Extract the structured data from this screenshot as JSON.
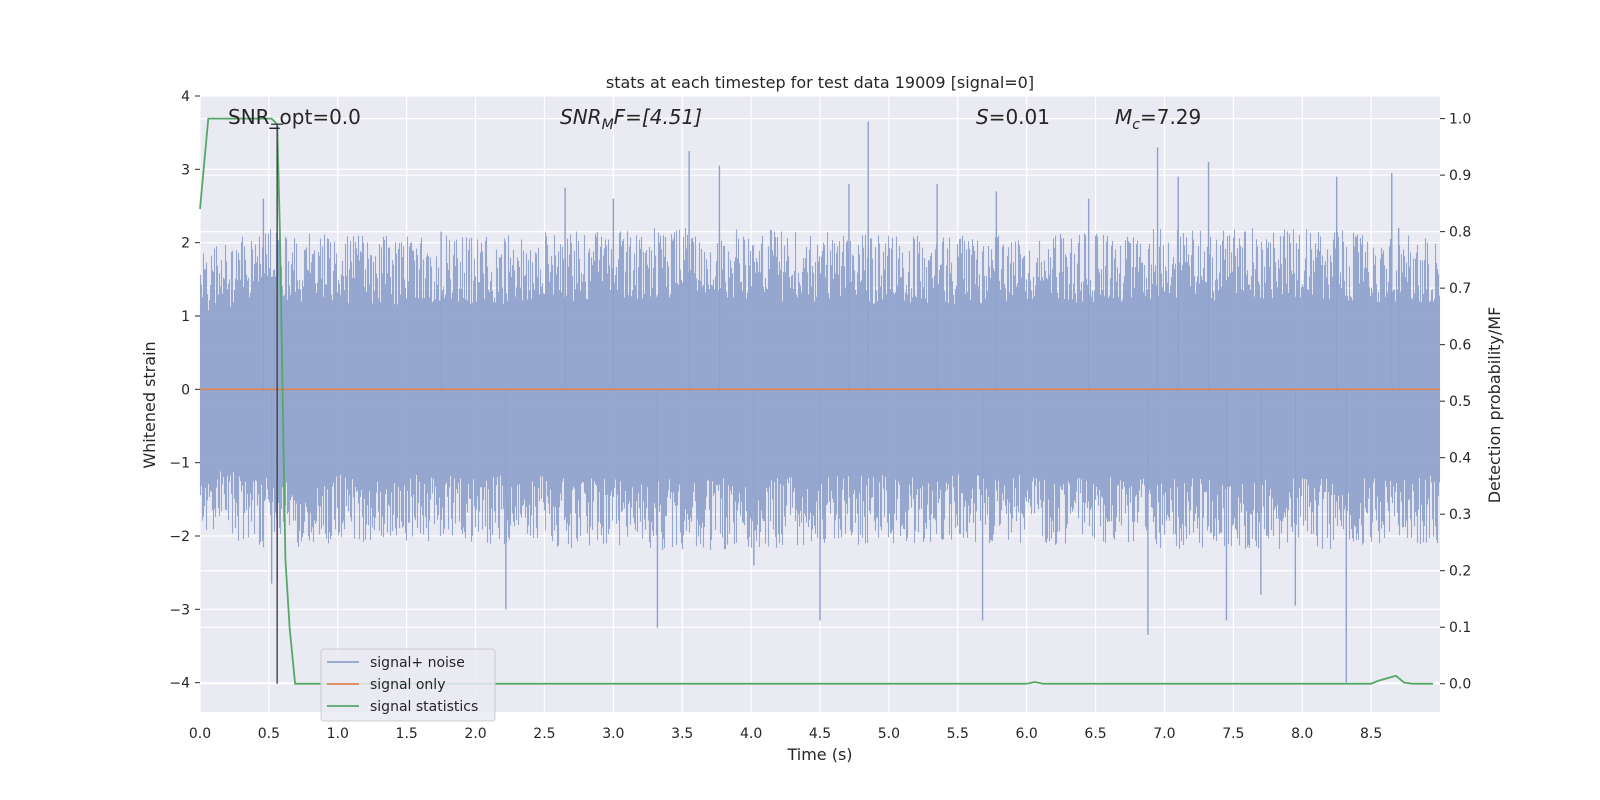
{
  "chart_data": {
    "type": "line",
    "title": "stats at each timestep for test data 19009 [signal=0]",
    "xlabel": "Time (s)",
    "ylabel": "Whitened strain",
    "y2label": "Detection probability/MF",
    "xlim": [
      0.0,
      9.0
    ],
    "ylim": [
      -4.4,
      4.0
    ],
    "y2lim": [
      -0.05,
      1.04
    ],
    "xticks": [
      "0.0",
      "0.5",
      "1.0",
      "1.5",
      "2.0",
      "2.5",
      "3.0",
      "3.5",
      "4.0",
      "4.5",
      "5.0",
      "5.5",
      "6.0",
      "6.5",
      "7.0",
      "7.5",
      "8.0",
      "8.5"
    ],
    "yticks": [
      "4",
      "3",
      "2",
      "1",
      "0",
      "−1",
      "−2",
      "−3",
      "−4"
    ],
    "y2ticks": [
      "1.0",
      "0.9",
      "0.8",
      "0.7",
      "0.6",
      "0.5",
      "0.4",
      "0.3",
      "0.2",
      "0.1",
      "0.0"
    ],
    "grid": true,
    "legend_position": "lower-left",
    "annotations": {
      "snr_opt": "SNR_opt=0.0",
      "snr_mf_base": "SNR",
      "snr_mf_sub": "M",
      "snr_mf_rest": "F=[4.51]",
      "s_var": "S",
      "s_val": "=0.01",
      "mc_var": "M",
      "mc_sub": "c",
      "mc_val": "=7.29"
    },
    "marker_x": 0.56,
    "series": [
      {
        "name": "signal+ noise",
        "color": "#8ea1cc",
        "axis": "left",
        "style": "noise",
        "sample_rate": 4096,
        "envelope": [
          [
            0.0,
            1.9
          ],
          [
            0.5,
            2.2
          ],
          [
            1.0,
            2.1
          ],
          [
            2.0,
            2.1
          ],
          [
            3.0,
            2.2
          ],
          [
            4.0,
            2.2
          ],
          [
            5.0,
            2.1
          ],
          [
            6.0,
            2.1
          ],
          [
            7.0,
            2.2
          ],
          [
            8.0,
            2.2
          ],
          [
            9.0,
            2.1
          ]
        ],
        "spikes": [
          [
            0.46,
            2.6
          ],
          [
            0.52,
            -2.65
          ],
          [
            0.56,
            -2.6
          ],
          [
            1.75,
            2.15
          ],
          [
            2.22,
            -3.0
          ],
          [
            2.65,
            2.75
          ],
          [
            3.0,
            2.6
          ],
          [
            3.32,
            -3.25
          ],
          [
            3.55,
            3.25
          ],
          [
            3.77,
            3.05
          ],
          [
            4.02,
            -2.4
          ],
          [
            4.5,
            -3.15
          ],
          [
            4.71,
            2.8
          ],
          [
            4.85,
            3.65
          ],
          [
            5.35,
            2.8
          ],
          [
            5.68,
            -3.15
          ],
          [
            5.78,
            2.7
          ],
          [
            6.45,
            2.6
          ],
          [
            6.88,
            -3.35
          ],
          [
            6.95,
            3.3
          ],
          [
            7.1,
            2.9
          ],
          [
            7.32,
            3.1
          ],
          [
            7.45,
            -3.15
          ],
          [
            7.7,
            -2.8
          ],
          [
            7.95,
            -2.95
          ],
          [
            8.25,
            2.9
          ],
          [
            8.32,
            -4.0
          ],
          [
            8.65,
            2.95
          ],
          [
            8.7,
            2.2
          ]
        ]
      },
      {
        "name": "signal only",
        "color": "#dd8452",
        "axis": "left",
        "style": "flat",
        "value": 0.0
      },
      {
        "name": "signal statistics",
        "color": "#55a868",
        "axis": "right",
        "style": "line",
        "points": [
          [
            0.0,
            0.84
          ],
          [
            0.06,
            1.0
          ],
          [
            0.12,
            1.0
          ],
          [
            0.52,
            1.0
          ],
          [
            0.56,
            0.99
          ],
          [
            0.58,
            0.8
          ],
          [
            0.62,
            0.22
          ],
          [
            0.65,
            0.1
          ],
          [
            0.69,
            0.0
          ],
          [
            2.0,
            0.0
          ],
          [
            4.0,
            0.0
          ],
          [
            6.0,
            0.0
          ],
          [
            6.06,
            0.003
          ],
          [
            6.12,
            0.0
          ],
          [
            7.0,
            0.0
          ],
          [
            8.0,
            0.0
          ],
          [
            8.2,
            0.0
          ],
          [
            8.5,
            0.0
          ],
          [
            8.55,
            0.005
          ],
          [
            8.62,
            0.01
          ],
          [
            8.68,
            0.014
          ],
          [
            8.74,
            0.002
          ],
          [
            8.8,
            0.0
          ],
          [
            8.95,
            0.0
          ]
        ]
      }
    ]
  }
}
